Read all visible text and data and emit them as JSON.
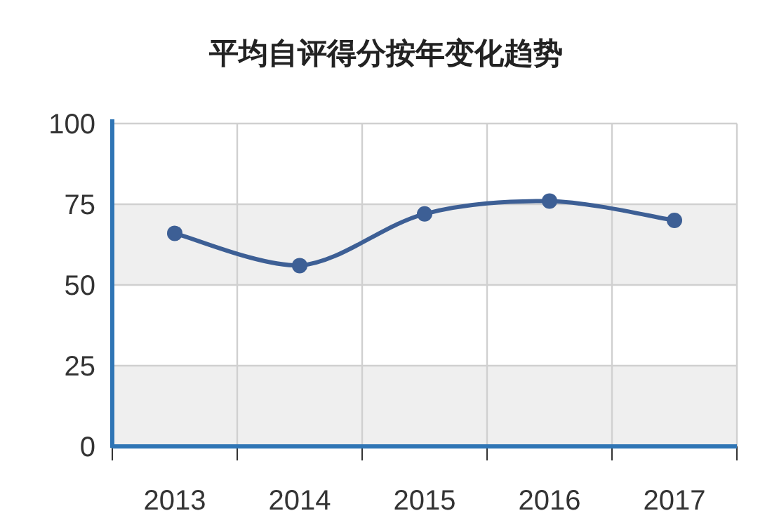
{
  "chart_data": {
    "type": "line",
    "title": "平均自评得分按年变化趋势",
    "categories": [
      "2013",
      "2014",
      "2015",
      "2016",
      "2017"
    ],
    "series": [
      {
        "color": "#3d5f95",
        "values": [
          66,
          56,
          72,
          76,
          70
        ]
      }
    ],
    "ylim": [
      0,
      100
    ],
    "yticks": [
      0,
      25,
      50,
      75,
      100
    ],
    "grid": true,
    "marker": "circle",
    "line_style": "solid",
    "bands": [
      {
        "axis": "y",
        "from": 0,
        "to": 25,
        "color": "#efefef"
      },
      {
        "axis": "y",
        "from": 50,
        "to": 75,
        "color": "#efefef"
      }
    ]
  }
}
